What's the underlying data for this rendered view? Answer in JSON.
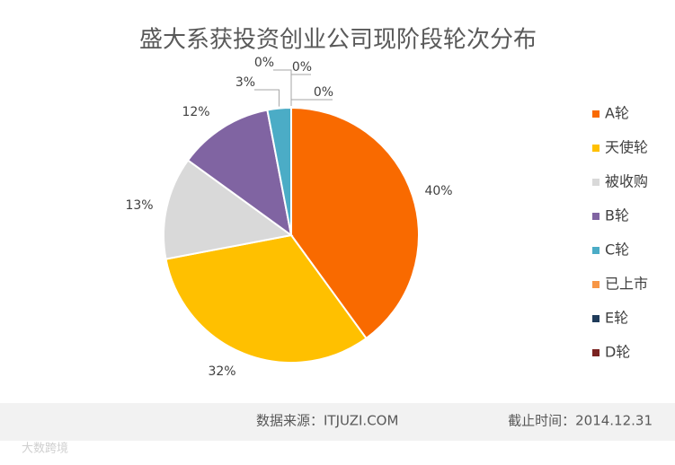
{
  "chart_data": {
    "type": "pie",
    "title": "盛大系获投资创业公司现阶段轮次分布",
    "categories": [
      "A轮",
      "天使轮",
      "被收购",
      "B轮",
      "C轮",
      "已上市",
      "E轮",
      "D轮"
    ],
    "values": [
      40,
      32,
      13,
      12,
      3,
      0,
      0,
      0
    ],
    "value_labels": [
      "40%",
      "32%",
      "13%",
      "12%",
      "3%",
      "0%",
      "0%",
      "0%"
    ],
    "colors": [
      "#f96a00",
      "#ffc000",
      "#d9d9d9",
      "#8064a2",
      "#4bacc6",
      "#f79646",
      "#1f3b5a",
      "#7b2321"
    ],
    "legend": "right",
    "source": "数据来源：ITJUZI.COM",
    "date": "截止时间：2014.12.31"
  },
  "watermark": "大数跨境"
}
